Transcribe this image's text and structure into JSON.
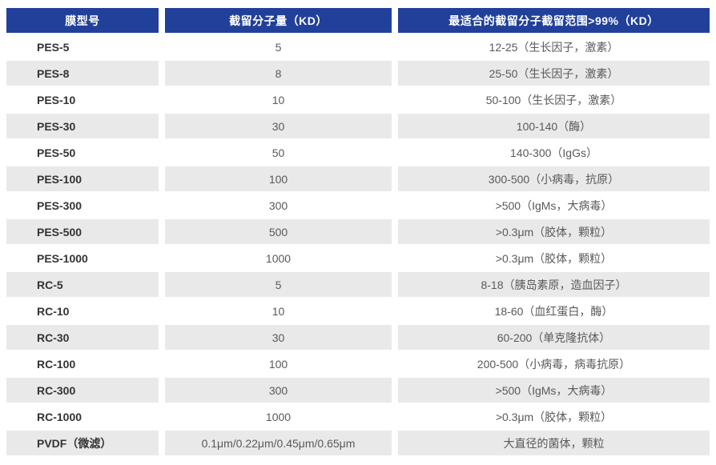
{
  "colors": {
    "header_bg": "#21409A",
    "header_text": "#FFFFFF",
    "stripe_bg": "#E9E9E9",
    "row_bg": "#FFFFFF",
    "model_text": "#333333",
    "value_text": "#595959"
  },
  "table": {
    "columns": [
      {
        "key": "model",
        "label": "膜型号"
      },
      {
        "key": "mwco",
        "label": "截留分子量（KD）"
      },
      {
        "key": "range",
        "label": "最适合的截留分子截留范围>99%（KD）"
      }
    ],
    "rows": [
      {
        "model": "PES-5",
        "mwco": "5",
        "range": "12-25（生长因子，激素）"
      },
      {
        "model": "PES-8",
        "mwco": "8",
        "range": "25-50（生长因子，激素）"
      },
      {
        "model": "PES-10",
        "mwco": "10",
        "range": "50-100（生长因子，激素）"
      },
      {
        "model": "PES-30",
        "mwco": "30",
        "range": "100-140（酶）"
      },
      {
        "model": "PES-50",
        "mwco": "50",
        "range": "140-300（IgGs）"
      },
      {
        "model": "PES-100",
        "mwco": "100",
        "range": "300-500（小病毒，抗原）"
      },
      {
        "model": "PES-300",
        "mwco": "300",
        "range": ">500（IgMs，大病毒）"
      },
      {
        "model": "PES-500",
        "mwco": "500",
        "range": ">0.3μm（胶体，颗粒）"
      },
      {
        "model": "PES-1000",
        "mwco": "1000",
        "range": ">0.3μm（胶体，颗粒）"
      },
      {
        "model": "RC-5",
        "mwco": "5",
        "range": "8-18（胰岛素原，造血因子）"
      },
      {
        "model": "RC-10",
        "mwco": "10",
        "range": "18-60（血红蛋白，酶）"
      },
      {
        "model": "RC-30",
        "mwco": "30",
        "range": "60-200（单克隆抗体）"
      },
      {
        "model": "RC-100",
        "mwco": "100",
        "range": "200-500（小病毒，病毒抗原）"
      },
      {
        "model": "RC-300",
        "mwco": "300",
        "range": ">500（IgMs，大病毒）"
      },
      {
        "model": "RC-1000",
        "mwco": "1000",
        "range": ">0.3μm（胶体，颗粒）"
      },
      {
        "model": "PVDF（微滤）",
        "mwco": "0.1μm/0.22μm/0.45μm/0.65μm",
        "range": "大直径的菌体，颗粒"
      }
    ]
  }
}
